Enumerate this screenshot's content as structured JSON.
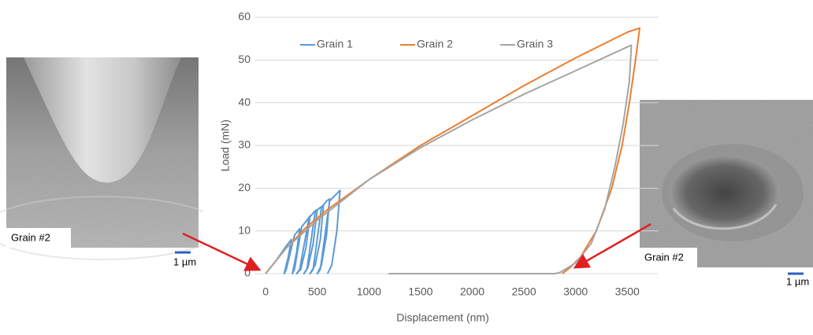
{
  "chart_data": {
    "type": "line",
    "x_label": "Displacement (nm)",
    "y_label": "Load (mN)",
    "xlim": [
      -100,
      3800
    ],
    "xticks": [
      0,
      500,
      1000,
      1500,
      2000,
      2500,
      3000,
      3500
    ],
    "ylim": [
      0,
      60
    ],
    "yticks": [
      0,
      10,
      20,
      30,
      40,
      50,
      60
    ],
    "grid": true,
    "legend": "top",
    "series": [
      {
        "name": "Grain 1",
        "color": "#5b9bd5",
        "x": [
          0,
          100,
          200,
          250,
          220,
          180,
          200,
          280,
          330,
          300,
          260,
          280,
          350,
          400,
          430,
          390,
          340,
          300,
          330,
          420,
          470,
          500,
          460,
          410,
          370,
          400,
          480,
          530,
          560,
          530,
          480,
          430,
          460,
          540,
          590,
          620,
          590,
          540,
          500,
          530,
          620,
          680,
          720,
          690,
          640,
          600
        ],
        "values": [
          0,
          3,
          6.5,
          8,
          4,
          0,
          1,
          9,
          10.5,
          5,
          0,
          1,
          11,
          12.5,
          13.5,
          6,
          1,
          0,
          1,
          13,
          14.5,
          15,
          7,
          1.5,
          0,
          1,
          14.5,
          15.5,
          16,
          8,
          2,
          0,
          1,
          15.5,
          17,
          17.5,
          9,
          2,
          0,
          1,
          17,
          18.5,
          19.5,
          10,
          2,
          0
        ]
      },
      {
        "name": "Grain 2",
        "color": "#ed7d31",
        "x": [
          0,
          100,
          200,
          400,
          600,
          800,
          1000,
          1500,
          2000,
          2500,
          3000,
          3500,
          3620,
          3580,
          3520,
          3450,
          3350,
          3200,
          3050,
          2950,
          2870
        ],
        "values": [
          0,
          3,
          6,
          11,
          15,
          18.5,
          22,
          30,
          37,
          44,
          50.5,
          56.5,
          57.5,
          50,
          40,
          30,
          20,
          10,
          4,
          1.5,
          0
        ]
      },
      {
        "name": "Grain 3",
        "color": "#a5a5a5",
        "x": [
          0,
          200,
          500,
          1000,
          1500,
          2000,
          2500,
          3000,
          3540,
          3520,
          3460,
          3380,
          3280,
          3150,
          3000,
          2850,
          2800,
          1190
        ],
        "values": [
          0,
          6,
          12.5,
          22,
          29.5,
          36,
          42,
          47.5,
          53.5,
          45,
          35,
          25,
          15,
          7,
          2.5,
          0.3,
          0,
          0
        ]
      }
    ]
  },
  "images": [
    {
      "label": "Grain #2",
      "scale": "1 µm"
    },
    {
      "label": "Grain #2",
      "scale": "1 µm"
    }
  ]
}
